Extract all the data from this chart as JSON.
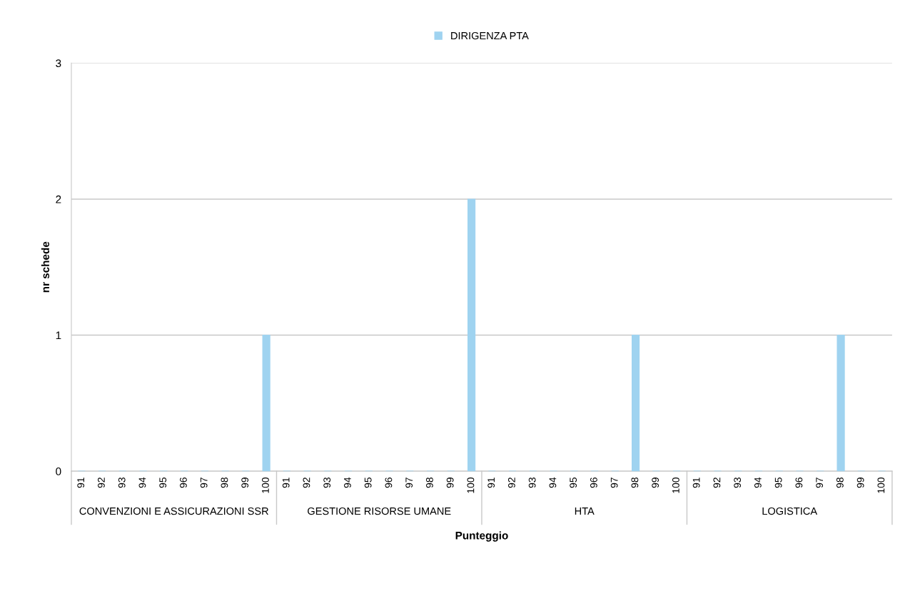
{
  "chart_data": {
    "type": "bar",
    "xlabel": "Punteggio",
    "ylabel": "nr schede",
    "categories": [
      "91",
      "92",
      "93",
      "94",
      "95",
      "96",
      "97",
      "98",
      "99",
      "100",
      "91",
      "92",
      "93",
      "94",
      "95",
      "96",
      "97",
      "98",
      "99",
      "100",
      "91",
      "92",
      "93",
      "94",
      "95",
      "96",
      "97",
      "98",
      "99",
      "100",
      "91",
      "92",
      "93",
      "94",
      "95",
      "96",
      "97",
      "98",
      "99",
      "100"
    ],
    "series": [
      {
        "name": "DIRIGENZA PTA",
        "color": "#9fd3f0",
        "values": [
          0,
          0,
          0,
          0,
          0,
          0,
          0,
          0,
          0,
          1,
          0,
          0,
          0,
          0,
          0,
          0,
          0,
          0,
          0,
          2,
          0,
          0,
          0,
          0,
          0,
          0,
          0,
          1,
          0,
          0,
          0,
          0,
          0,
          0,
          0,
          0,
          0,
          1,
          0,
          0
        ]
      }
    ],
    "annotations": [
      "CONVENZIONI E ASSICURAZIONI SSR",
      "GESTIONE RISORSE UMANE",
      "HTA",
      "LOGISTICA"
    ],
    "ylim": [
      0,
      3
    ],
    "yticks": [
      0,
      1,
      2,
      3
    ],
    "grid": "y",
    "legend": "top"
  }
}
